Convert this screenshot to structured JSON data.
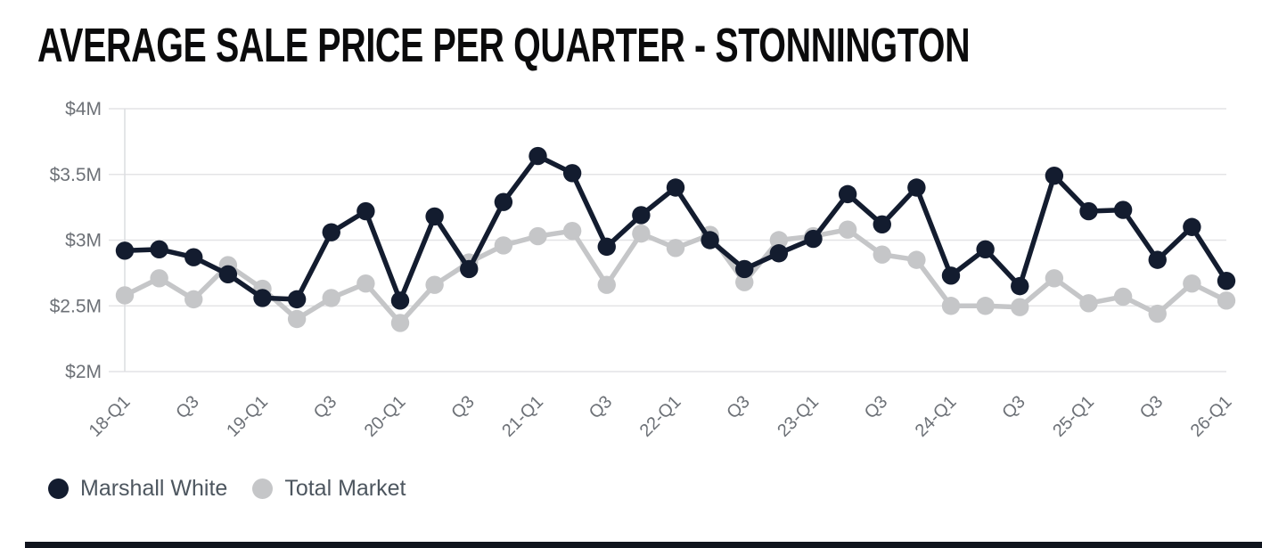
{
  "title": "AVERAGE SALE PRICE PER QUARTER - STONNINGTON",
  "colors": {
    "background": "#ffffff",
    "grid": "#e4e4e6",
    "axis_line": "#dcdde0",
    "axis_text": "#6d7177",
    "legend_text": "#4d565f",
    "title_text": "#0b0b0c",
    "bottom_bar": "#10141d",
    "marshall_white": "#131c2f",
    "total_market": "#c5c6c8"
  },
  "legend": {
    "items": [
      {
        "label": "Marshall White",
        "color": "#131c2f"
      },
      {
        "label": "Total Market",
        "color": "#c5c6c8"
      }
    ]
  },
  "chart_data": {
    "type": "line",
    "title": "AVERAGE SALE PRICE PER QUARTER - STONNINGTON",
    "x_tick_labels": [
      "18-Q1",
      "Q3",
      "19-Q1",
      "Q3",
      "20-Q1",
      "Q3",
      "21-Q1",
      "Q3",
      "22-Q1",
      "Q3",
      "23-Q1",
      "Q3",
      "24-Q1",
      "Q3",
      "25-Q1",
      "Q3",
      "26-Q1"
    ],
    "points_per_tick": 2,
    "y_ticks": [
      {
        "label": "$4M",
        "value": 4
      },
      {
        "label": "$3.5M",
        "value": 3.5
      },
      {
        "label": "$3M",
        "value": 3
      },
      {
        "label": "$2.5M",
        "value": 2.5
      },
      {
        "label": "$2M",
        "value": 2
      }
    ],
    "ylim": [
      2,
      4
    ],
    "unit": "$M (average sale price)",
    "grid": "horizontal",
    "legend_position": "bottom-left",
    "series": [
      {
        "name": "Marshall White",
        "color": "#131c2f",
        "values": [
          2.92,
          2.93,
          2.87,
          2.74,
          2.56,
          2.55,
          3.06,
          3.22,
          2.54,
          3.18,
          2.78,
          3.29,
          3.64,
          3.51,
          2.95,
          3.19,
          3.4,
          3.0,
          2.78,
          2.9,
          3.01,
          3.35,
          3.12,
          3.4,
          2.73,
          2.93,
          2.65,
          3.49,
          3.22,
          3.23,
          2.85,
          3.1,
          2.69
        ]
      },
      {
        "name": "Total Market",
        "color": "#c5c6c8",
        "values": [
          2.58,
          2.71,
          2.55,
          2.81,
          2.63,
          2.4,
          2.56,
          2.67,
          2.37,
          2.66,
          2.83,
          2.96,
          3.03,
          3.07,
          2.66,
          3.05,
          2.94,
          3.04,
          2.68,
          3.0,
          3.03,
          3.08,
          2.89,
          2.85,
          2.5,
          2.5,
          2.49,
          2.71,
          2.52,
          2.57,
          2.44,
          2.67,
          2.54
        ]
      }
    ]
  }
}
